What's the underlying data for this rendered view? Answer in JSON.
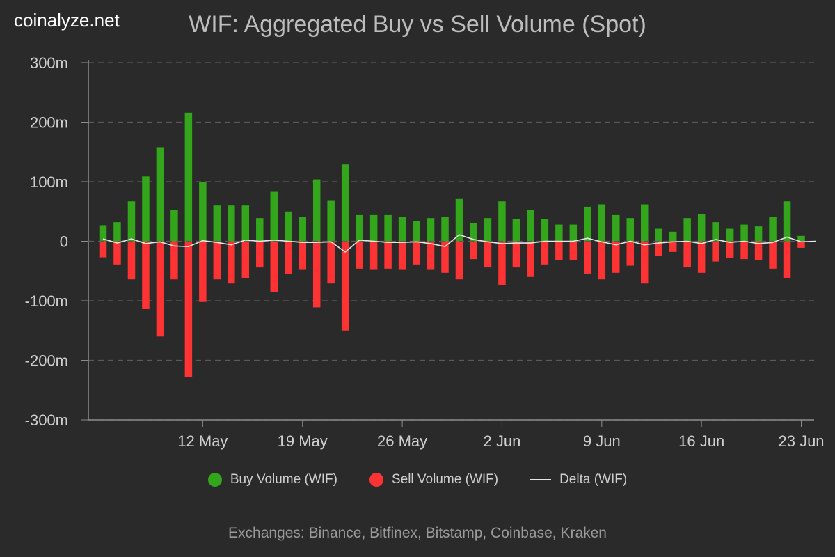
{
  "header": {
    "brand": "coinalyze.net",
    "title": "WIF: Aggregated Buy vs Sell Volume (Spot)"
  },
  "legend": {
    "buy": "Buy Volume (WIF)",
    "sell": "Sell Volume (WIF)",
    "delta": "Delta (WIF)"
  },
  "footer": {
    "exchanges": "Exchanges: Binance, Bitfinex, Bitstamp, Coinbase, Kraken"
  },
  "colors": {
    "buy": "#33a61c",
    "sell": "#ff3333",
    "delta": "#e6e6e6",
    "grid": "#5a5a5a",
    "axis": "#8c8c8c"
  },
  "chart_data": {
    "type": "bar",
    "x_type": "date",
    "x": [
      "2024-05-05",
      "2024-05-06",
      "2024-05-07",
      "2024-05-08",
      "2024-05-09",
      "2024-05-10",
      "2024-05-11",
      "2024-05-12",
      "2024-05-13",
      "2024-05-14",
      "2024-05-15",
      "2024-05-16",
      "2024-05-17",
      "2024-05-18",
      "2024-05-19",
      "2024-05-20",
      "2024-05-21",
      "2024-05-22",
      "2024-05-23",
      "2024-05-24",
      "2024-05-25",
      "2024-05-26",
      "2024-05-27",
      "2024-05-28",
      "2024-05-29",
      "2024-05-30",
      "2024-05-31",
      "2024-06-01",
      "2024-06-02",
      "2024-06-03",
      "2024-06-04",
      "2024-06-05",
      "2024-06-06",
      "2024-06-07",
      "2024-06-08",
      "2024-06-09",
      "2024-06-10",
      "2024-06-11",
      "2024-06-12",
      "2024-06-13",
      "2024-06-14",
      "2024-06-15",
      "2024-06-16",
      "2024-06-17",
      "2024-06-18",
      "2024-06-19",
      "2024-06-20",
      "2024-06-21",
      "2024-06-22",
      "2024-06-23",
      "2024-06-24"
    ],
    "xticks": [
      {
        "date": "2024-05-12",
        "label": "12 May"
      },
      {
        "date": "2024-05-19",
        "label": "19 May"
      },
      {
        "date": "2024-05-26",
        "label": "26 May"
      },
      {
        "date": "2024-06-02",
        "label": "2 Jun"
      },
      {
        "date": "2024-06-09",
        "label": "9 Jun"
      },
      {
        "date": "2024-06-16",
        "label": "16 Jun"
      },
      {
        "date": "2024-06-23",
        "label": "23 Jun"
      }
    ],
    "yticks": [
      {
        "value": 300,
        "label": "300m"
      },
      {
        "value": 200,
        "label": "200m"
      },
      {
        "value": 100,
        "label": "100m"
      },
      {
        "value": 0,
        "label": "0"
      },
      {
        "value": -100,
        "label": "-100m"
      },
      {
        "value": -200,
        "label": "-200m"
      },
      {
        "value": -300,
        "label": "-300m"
      }
    ],
    "ylim": [
      -300,
      300
    ],
    "y_unit": "m",
    "grid": true,
    "legend_position": "bottom",
    "series": [
      {
        "name": "Buy Volume (WIF)",
        "type": "bar",
        "values": [
          27,
          32,
          67,
          109,
          158,
          53,
          216,
          99,
          60,
          60,
          60,
          39,
          83,
          50,
          41,
          104,
          69,
          129,
          44,
          44,
          44,
          41,
          34,
          39,
          41,
          71,
          30,
          39,
          67,
          37,
          53,
          37,
          28,
          28,
          58,
          62,
          44,
          39,
          62,
          21,
          16,
          39,
          46,
          32,
          21,
          28,
          25,
          41,
          67,
          9,
          0
        ]
      },
      {
        "name": "Sell Volume (WIF)",
        "type": "bar",
        "values": [
          -27,
          -39,
          -64,
          -114,
          -160,
          -64,
          -228,
          -102,
          -64,
          -71,
          -62,
          -44,
          -85,
          -55,
          -48,
          -111,
          -71,
          -150,
          -46,
          -48,
          -46,
          -48,
          -39,
          -48,
          -53,
          -64,
          -30,
          -44,
          -74,
          -44,
          -60,
          -39,
          -32,
          -32,
          -55,
          -64,
          -53,
          -41,
          -71,
          -25,
          -18,
          -44,
          -53,
          -34,
          -28,
          -30,
          -32,
          -46,
          -62,
          -11,
          0
        ]
      },
      {
        "name": "Delta (WIF)",
        "type": "line",
        "values": [
          4,
          -3,
          4,
          -4,
          -1,
          -8,
          -9,
          1,
          -2,
          -6,
          2,
          0,
          2,
          0,
          -2,
          -2,
          -1,
          -18,
          2,
          0,
          -2,
          -2,
          -1,
          -4,
          -9,
          11,
          3,
          -1,
          -4,
          -3,
          -3,
          0,
          0,
          0,
          5,
          -1,
          -6,
          0,
          -6,
          -3,
          -1,
          0,
          -4,
          3,
          -2,
          0,
          -4,
          -2,
          7,
          -1,
          0
        ]
      }
    ]
  }
}
